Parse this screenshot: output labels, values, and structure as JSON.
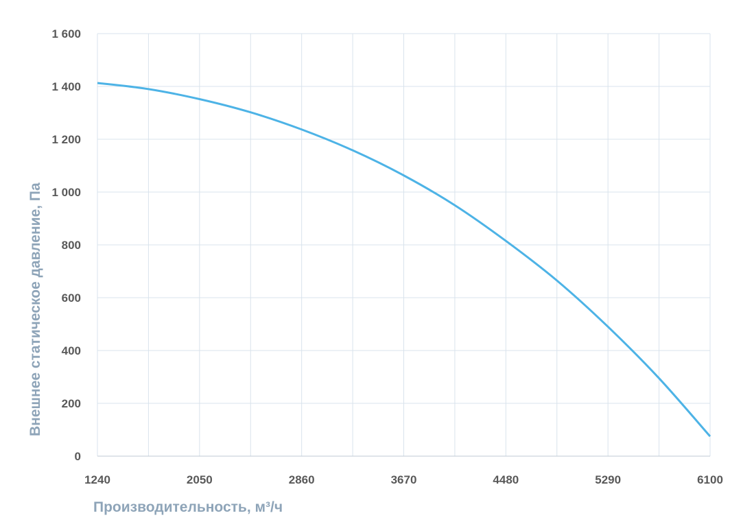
{
  "chart_data": {
    "type": "line",
    "xlabel": "Производительность, м³/ч",
    "ylabel": "Внешнее  статическое  давление, Па",
    "xlim": [
      1240,
      6100
    ],
    "ylim": [
      0,
      1600
    ],
    "x_ticks": [
      1240,
      2050,
      2860,
      3670,
      4480,
      5290,
      6100
    ],
    "x_tick_labels": [
      "1240",
      "2050",
      "2860",
      "3670",
      "4480",
      "5290",
      "6100"
    ],
    "y_ticks": [
      0,
      200,
      400,
      600,
      800,
      1000,
      1200,
      1400,
      1600
    ],
    "y_tick_labels": [
      "0",
      "200",
      "400",
      "600",
      "800",
      "1 000",
      "1 200",
      "1 400",
      "1 600"
    ],
    "grid": true,
    "series": [
      {
        "color": "#4db3e6",
        "x": [
          1240,
          1645,
          2050,
          2455,
          2860,
          3265,
          3670,
          4075,
          4480,
          4885,
          5290,
          5695,
          6100
        ],
        "y": [
          1413,
          1390,
          1352,
          1302,
          1237,
          1158,
          1063,
          950,
          815,
          665,
          490,
          295,
          75
        ]
      }
    ],
    "colors": {
      "line": "#4db3e6",
      "grid": "#d9e3ec",
      "axis_title": "#8ea4b8",
      "tick_label": "#595959"
    }
  }
}
